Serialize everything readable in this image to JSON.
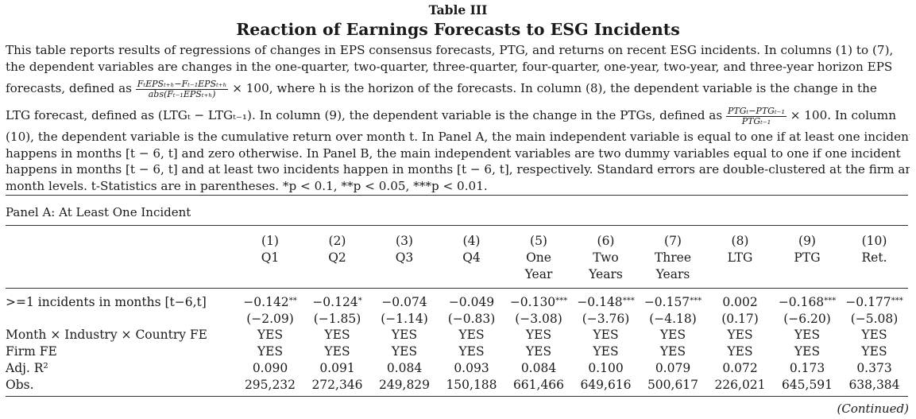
{
  "table_number": "Table III",
  "title": "Reaction of Earnings Forecasts to ESG Incidents",
  "caption": {
    "line1": "This table reports results of regressions of changes in EPS consensus forecasts, PTG, and returns on recent ESG incidents. In columns (1) to (7),",
    "line2": "the dependent variables are changes in the one-quarter, two-quarter, three-quarter, four-quarter, one-year, two-year, and three-year horizon EPS",
    "line3_pre": "forecasts, defined as",
    "line3_frac_num": "FₜEPSₜ₊ₕ−Fₜ₋₁EPSₜ₊ₕ",
    "line3_frac_den": "abs(Fₜ₋₁EPSₜ₊ₕ)",
    "line3_post": "× 100, where h is the horizon of the forecasts. In column (8), the dependent variable is the change in the",
    "line4_pre": "LTG forecast, defined as (LTGₜ − LTGₜ₋₁). In column (9), the dependent variable is the change in the PTGs, defined as",
    "line4_frac_num": "PTGₜ−PTGₜ₋₁",
    "line4_frac_den": "PTGₜ₋₁",
    "line4_post": "× 100. In column",
    "line5": "(10), the dependent variable is the cumulative return over month t. In Panel A, the main independent variable is equal to one if at least one incident",
    "line6": "happens in months [t − 6, t] and zero otherwise. In Panel B, the main independent variables are two dummy variables equal to one if one incident",
    "line7": "happens in months [t − 6, t] and at least two incidents happen in months [t − 6, t], respectively. Standard errors are double-clustered at the firm and",
    "line8": "month levels. t-Statistics are in parentheses. *p < 0.1, **p < 0.05, ***p < 0.01."
  },
  "panel_label": "Panel A: At Least One Incident",
  "columns": [
    {
      "num": "(1)",
      "l1": "Q1",
      "l2": ""
    },
    {
      "num": "(2)",
      "l1": "Q2",
      "l2": ""
    },
    {
      "num": "(3)",
      "l1": "Q3",
      "l2": ""
    },
    {
      "num": "(4)",
      "l1": "Q4",
      "l2": ""
    },
    {
      "num": "(5)",
      "l1": "One",
      "l2": "Year"
    },
    {
      "num": "(6)",
      "l1": "Two",
      "l2": "Years"
    },
    {
      "num": "(7)",
      "l1": "Three",
      "l2": "Years"
    },
    {
      "num": "(8)",
      "l1": "LTG",
      "l2": ""
    },
    {
      "num": "(9)",
      "l1": "PTG",
      "l2": ""
    },
    {
      "num": "(10)",
      "l1": "Ret.",
      "l2": ""
    }
  ],
  "rows": [
    {
      "label": ">=1 incidents in months [t−6,t]",
      "values": [
        "−0.142",
        "−0.124",
        "−0.074",
        "−0.049",
        "−0.130",
        "−0.148",
        "−0.157",
        "0.002",
        "−0.168",
        "−0.177"
      ],
      "stars": [
        "**",
        "*",
        "",
        "",
        "***",
        "***",
        "***",
        "",
        "***",
        "***"
      ]
    },
    {
      "label": "",
      "values": [
        "(−2.09)",
        "(−1.85)",
        "(−1.14)",
        "(−0.83)",
        "(−3.08)",
        "(−3.76)",
        "(−4.18)",
        "(0.17)",
        "(−6.20)",
        "(−5.08)"
      ],
      "stars": [
        "",
        "",
        "",
        "",
        "",
        "",
        "",
        "",
        "",
        ""
      ]
    },
    {
      "label": "Month × Industry × Country FE",
      "values": [
        "YES",
        "YES",
        "YES",
        "YES",
        "YES",
        "YES",
        "YES",
        "YES",
        "YES",
        "YES"
      ],
      "stars": [
        "",
        "",
        "",
        "",
        "",
        "",
        "",
        "",
        "",
        ""
      ]
    },
    {
      "label": "Firm FE",
      "values": [
        "YES",
        "YES",
        "YES",
        "YES",
        "YES",
        "YES",
        "YES",
        "YES",
        "YES",
        "YES"
      ],
      "stars": [
        "",
        "",
        "",
        "",
        "",
        "",
        "",
        "",
        "",
        ""
      ]
    },
    {
      "label": "Adj. R²",
      "values": [
        "0.090",
        "0.091",
        "0.084",
        "0.093",
        "0.084",
        "0.100",
        "0.079",
        "0.072",
        "0.173",
        "0.373"
      ],
      "stars": [
        "",
        "",
        "",
        "",
        "",
        "",
        "",
        "",
        "",
        ""
      ]
    },
    {
      "label": "Obs.",
      "values": [
        "295,232",
        "272,346",
        "249,829",
        "150,188",
        "661,466",
        "649,616",
        "500,617",
        "226,021",
        "645,591",
        "638,384"
      ],
      "stars": [
        "",
        "",
        "",
        "",
        "",
        "",
        "",
        "",
        "",
        ""
      ]
    }
  ],
  "continued": "(Continued)"
}
